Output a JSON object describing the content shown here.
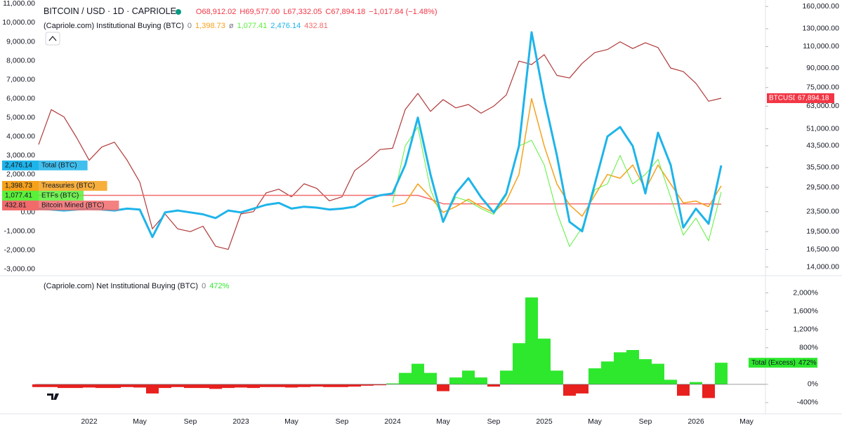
{
  "chart_data": [
    {
      "type": "line",
      "title": "BITCOIN / USD · 1D · CAPRIOLE",
      "ohlc": [
        "O68,912.02",
        "H69,577.00",
        "L67,332.05",
        "C67,894.18",
        "−1,017.84 (−1.48%)"
      ],
      "indicator": "(Capriole.com) Institutional Buying (BTC)",
      "indicator_flags": [
        "0",
        "ø"
      ],
      "categories": [
        null,
        null,
        null,
        null,
        "2022",
        null,
        null,
        null,
        "May",
        null,
        null,
        null,
        "Sep",
        null,
        null,
        null,
        "2023",
        null,
        null,
        null,
        "May",
        null,
        null,
        null,
        "Sep",
        null,
        null,
        null,
        "2024",
        null,
        null,
        null,
        "May",
        null,
        null,
        null,
        "Sep",
        null,
        null,
        null,
        "2025",
        null,
        null,
        null,
        "May",
        null,
        null,
        null,
        "Sep",
        null,
        null,
        null,
        "2026",
        null,
        null,
        null,
        "May",
        null
      ],
      "ylim": [
        -3300,
        11200
      ],
      "yticks": [
        {
          "value": -3000,
          "label": "-3,000.00"
        },
        {
          "value": -2000,
          "label": "-2,000.00"
        },
        {
          "value": -1000,
          "label": "-1,000.00"
        },
        {
          "value": 0,
          "label": "0.00"
        },
        {
          "value": 1000,
          "label": "1,000.00"
        },
        {
          "value": 2000,
          "label": "2,000.00"
        },
        {
          "value": 3000,
          "label": "3,000.00"
        },
        {
          "value": 4000,
          "label": "4,000.00"
        },
        {
          "value": 5000,
          "label": "5,000.00"
        },
        {
          "value": 6000,
          "label": "6,000.00"
        },
        {
          "value": 7000,
          "label": "7,000.00"
        },
        {
          "value": 8000,
          "label": "8,000.00"
        },
        {
          "value": 9000,
          "label": "9,000.00"
        },
        {
          "value": 10000,
          "label": "10,000.00"
        },
        {
          "value": 11000,
          "label": "11,000.00"
        }
      ],
      "y2lim": [
        13000,
        170000
      ],
      "y2log": true,
      "y2ticks": [
        {
          "value": 14000,
          "label": "14,000.00"
        },
        {
          "value": 16500,
          "label": "16,500.00"
        },
        {
          "value": 19500,
          "label": "19,500.00"
        },
        {
          "value": 23500,
          "label": "23,500.00"
        },
        {
          "value": 29500,
          "label": "29,500.00"
        },
        {
          "value": 35500,
          "label": "35,500.00"
        },
        {
          "value": 43500,
          "label": "43,500.00"
        },
        {
          "value": 51000,
          "label": "51,000.00"
        },
        {
          "value": 63000,
          "label": "63,000.00"
        },
        {
          "value": 75000,
          "label": "75,000.00"
        },
        {
          "value": 90000,
          "label": "90,000.00"
        },
        {
          "value": 110000,
          "label": "110,000.00"
        },
        {
          "value": 130000,
          "label": "130,000.00"
        },
        {
          "value": 160000,
          "label": "160,000.00"
        }
      ],
      "series": [
        {
          "name": "BTCUSD",
          "color": "#b03a3a",
          "axis": "y2",
          "line_width": 1.2,
          "value_label": "67,894.18",
          "values": [
            44000,
            61000,
            57000,
            47000,
            38000,
            43000,
            45000,
            38000,
            31000,
            20000,
            23000,
            20000,
            19500,
            20500,
            17000,
            16500,
            23000,
            23500,
            28000,
            29000,
            27000,
            30500,
            29200,
            26000,
            27000,
            34500,
            37700,
            42000,
            42500,
            61000,
            71000,
            60000,
            67000,
            62000,
            64000,
            59000,
            63000,
            70000,
            96000,
            93000,
            102000,
            84000,
            82000,
            94000,
            104000,
            107000,
            115000,
            108000,
            114000,
            109000,
            90000,
            87000,
            78000,
            66000,
            67894.18,
            null,
            null,
            null
          ]
        },
        {
          "name": "Treasuries (BTC)",
          "color": "#f5a11b",
          "line_width": 1.5,
          "value_label": "1,398.73",
          "values": [
            null,
            null,
            null,
            null,
            null,
            null,
            null,
            null,
            null,
            null,
            null,
            null,
            null,
            null,
            null,
            null,
            null,
            null,
            null,
            null,
            null,
            null,
            null,
            null,
            null,
            null,
            null,
            null,
            300,
            500,
            1500,
            800,
            0,
            300,
            700,
            300,
            0,
            600,
            2000,
            6000,
            3500,
            1500,
            400,
            -200,
            900,
            2000,
            1800,
            2500,
            1200,
            2500,
            1500,
            500,
            600,
            300,
            1398.73,
            null,
            null,
            null
          ]
        },
        {
          "name": "ETFs (BTC)",
          "color": "#5bf03a",
          "line_width": 1,
          "value_label": "1,077.41",
          "values": [
            null,
            null,
            null,
            null,
            null,
            null,
            null,
            null,
            null,
            null,
            null,
            null,
            null,
            null,
            null,
            null,
            null,
            null,
            null,
            null,
            null,
            null,
            null,
            null,
            null,
            null,
            null,
            null,
            500,
            3500,
            4500,
            1200,
            -400,
            800,
            600,
            200,
            -100,
            900,
            3500,
            3800,
            2500,
            0,
            -1800,
            -800,
            1200,
            1500,
            3000,
            1500,
            2000,
            2800,
            800,
            -1200,
            -300,
            -1500,
            1077.41,
            null,
            null,
            null
          ]
        },
        {
          "name": "Total (BTC)",
          "color": "#1eb4ea",
          "line_width": 3,
          "value_label": "2,476.14",
          "values": [
            200,
            150,
            100,
            150,
            200,
            150,
            100,
            200,
            150,
            -1300,
            0,
            100,
            0,
            -100,
            -300,
            100,
            0,
            200,
            400,
            500,
            200,
            300,
            250,
            150,
            200,
            300,
            700,
            900,
            1000,
            2500,
            5000,
            2000,
            -500,
            1000,
            1800,
            800,
            0,
            1000,
            3500,
            9500,
            6000,
            3000,
            -500,
            -1000,
            1500,
            4000,
            4500,
            3500,
            1000,
            4200,
            2500,
            -800,
            200,
            -600,
            2476.14,
            null,
            null,
            null
          ]
        },
        {
          "name": "Bitcoin Mined (BTC)",
          "color": "#f26b6b",
          "line_width": 1.5,
          "value_label": "432.81",
          "values": [
            900,
            900,
            900,
            900,
            900,
            900,
            900,
            900,
            900,
            900,
            900,
            900,
            900,
            900,
            900,
            900,
            900,
            900,
            900,
            900,
            900,
            900,
            900,
            900,
            900,
            900,
            900,
            900,
            900,
            900,
            900,
            700,
            450,
            450,
            450,
            450,
            450,
            450,
            450,
            450,
            450,
            450,
            450,
            450,
            450,
            450,
            450,
            450,
            450,
            450,
            450,
            450,
            450,
            450,
            432.81,
            null,
            null,
            null
          ]
        }
      ]
    },
    {
      "type": "area",
      "title": "(Capriole.com) Net Institutional Buying (BTC)",
      "indicator_flags": [
        "0"
      ],
      "ylim": [
        -600,
        2300
      ],
      "yticks": [
        {
          "value": -400,
          "label": "-400%"
        },
        {
          "value": 0,
          "label": "0%"
        },
        {
          "value": 800,
          "label": "800%"
        },
        {
          "value": 1200,
          "label": "1,200%"
        },
        {
          "value": 1600,
          "label": "1,600%"
        },
        {
          "value": 2000,
          "label": "2,000%"
        }
      ],
      "series": [
        {
          "name": "Total (Excess)",
          "color": "#2ee82e",
          "negative_color": "#e8201e",
          "value_label": "472%",
          "values": [
            -60,
            -60,
            -80,
            -80,
            -70,
            -80,
            -80,
            -60,
            -70,
            -200,
            -80,
            -60,
            -80,
            -80,
            -100,
            -80,
            -70,
            -80,
            -60,
            -60,
            -70,
            -60,
            -50,
            -60,
            -60,
            -50,
            -30,
            -20,
            20,
            250,
            450,
            250,
            -150,
            150,
            300,
            150,
            -50,
            300,
            900,
            1900,
            1000,
            300,
            -250,
            -200,
            350,
            500,
            700,
            750,
            550,
            450,
            100,
            -250,
            50,
            -300,
            472,
            null,
            null,
            null
          ]
        }
      ]
    }
  ]
}
